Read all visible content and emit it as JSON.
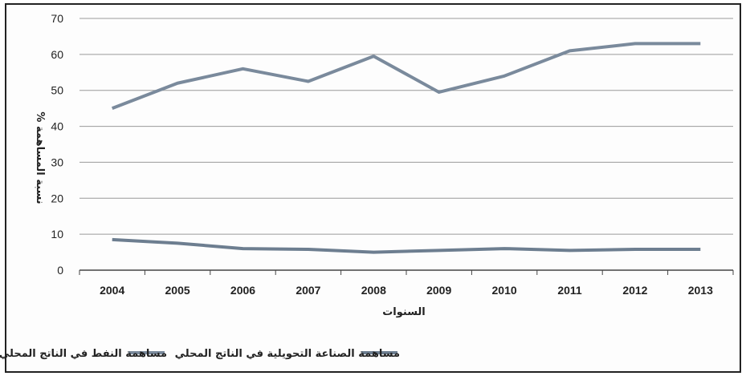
{
  "chart_data": {
    "type": "line",
    "title": "",
    "xlabel": "السنوات",
    "ylabel": "نسبة المساهمة %",
    "x": [
      "2004",
      "2005",
      "2006",
      "2007",
      "2008",
      "2009",
      "2010",
      "2011",
      "2012",
      "2013"
    ],
    "ylim": [
      0,
      70
    ],
    "yticks": [
      0,
      10,
      20,
      30,
      40,
      50,
      60,
      70
    ],
    "grid": true,
    "legend_position": "bottom",
    "series": [
      {
        "name": "مساهمة النفط في الناتج المحلي",
        "color": "#7a8a9c",
        "values": [
          45,
          52,
          56,
          52.5,
          59.5,
          49.5,
          54,
          61,
          63,
          63
        ]
      },
      {
        "name": "مساهمة الصناعة التحويلية في الناتج المحلي",
        "color": "#6d7e90",
        "values": [
          8.5,
          7.5,
          6,
          5.8,
          5,
          5.5,
          6,
          5.5,
          5.8,
          5.8
        ]
      }
    ]
  }
}
